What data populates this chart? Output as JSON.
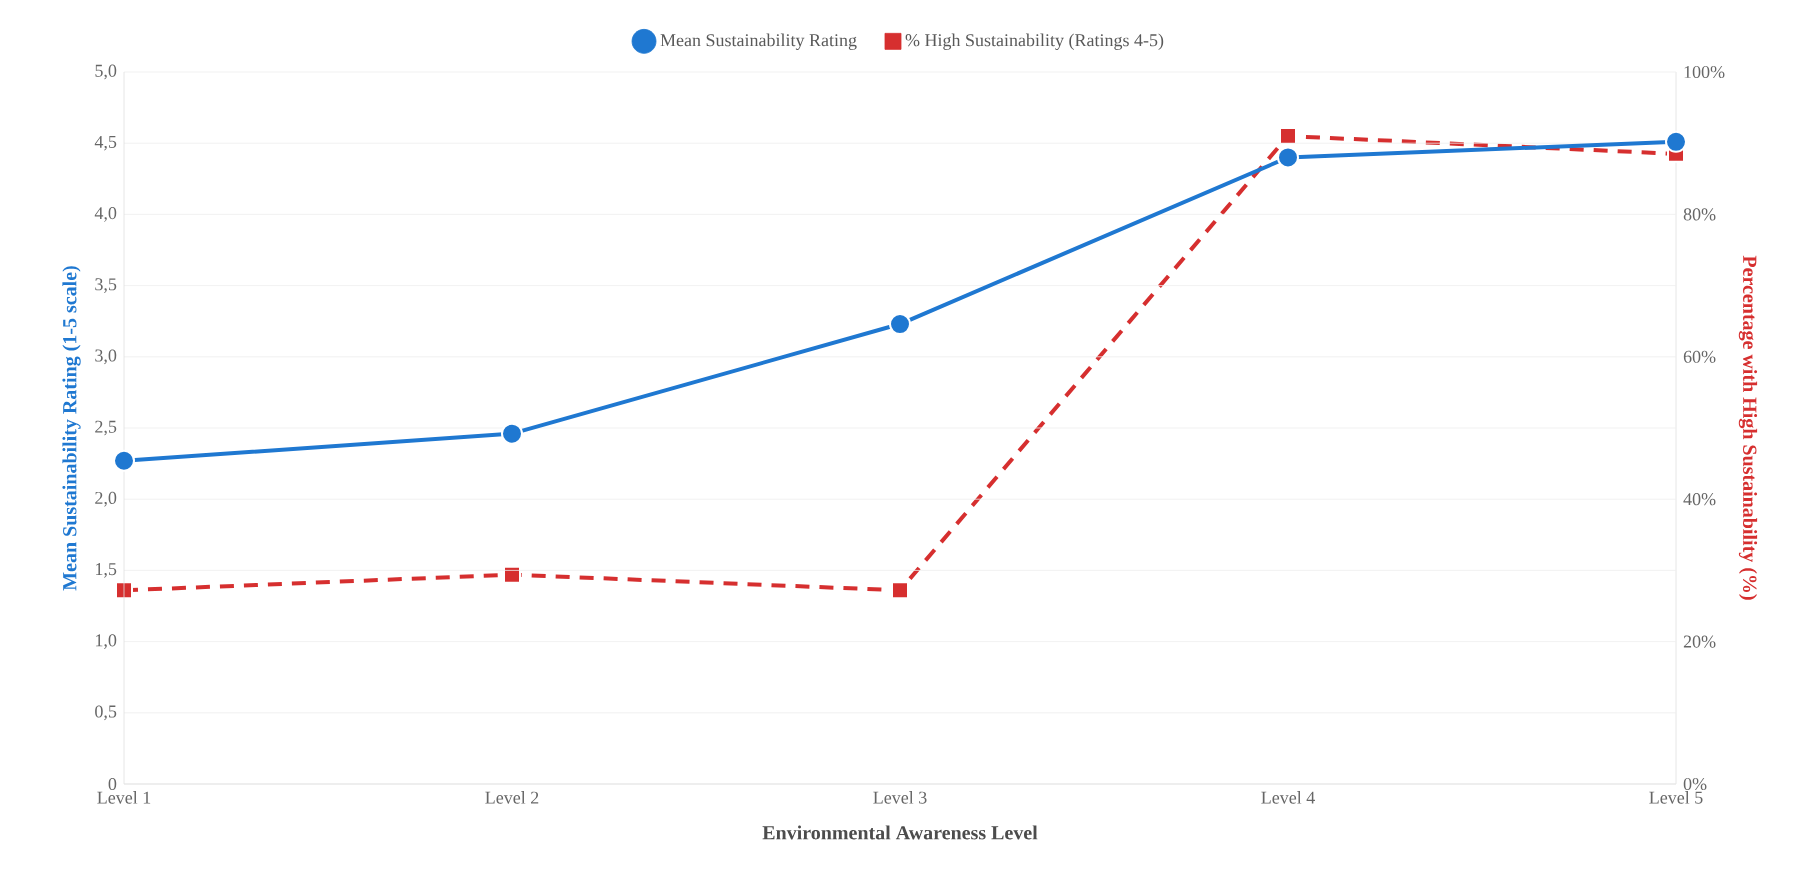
{
  "chart_data": {
    "type": "line",
    "xlabel": "Environmental Awareness Level",
    "ylabel": "Mean Sustainability Rating (1-5 scale)",
    "y2label": "Percentage with High Sustainability (%)",
    "categories": [
      "Level 1",
      "Level 2",
      "Level 3",
      "Level 4",
      "Level 5"
    ],
    "series": [
      {
        "name": "Mean Sustainability Rating",
        "color": "#1f78d1",
        "values": [
          2.27,
          2.46,
          3.23,
          4.4,
          4.51
        ],
        "marker": "circle",
        "line_style": "solid"
      },
      {
        "name": "% High Sustainability (Ratings 4-5)",
        "color": "#d62f2f",
        "values": [
          27.2,
          29.4,
          27.2,
          91,
          88.5
        ],
        "axis": "y2",
        "marker": "square",
        "line_style": "dashed"
      }
    ],
    "ylim": [
      0,
      5
    ],
    "yticks": [
      {
        "value": 0,
        "label": "0"
      },
      {
        "value": 0.5,
        "label": "0,5"
      },
      {
        "value": 1,
        "label": "1,0"
      },
      {
        "value": 1.5,
        "label": "1,5"
      },
      {
        "value": 2,
        "label": "2,0"
      },
      {
        "value": 2.5,
        "label": "2,5"
      },
      {
        "value": 3,
        "label": "3,0"
      },
      {
        "value": 3.5,
        "label": "3,5"
      },
      {
        "value": 4,
        "label": "4,0"
      },
      {
        "value": 4.5,
        "label": "4,5"
      },
      {
        "value": 5,
        "label": "5,0"
      }
    ],
    "y2lim": [
      0,
      100
    ],
    "y2ticks": [
      {
        "value": 0,
        "label": "0%"
      },
      {
        "value": 20,
        "label": "20%"
      },
      {
        "value": 40,
        "label": "40%"
      },
      {
        "value": 60,
        "label": "60%"
      },
      {
        "value": 80,
        "label": "80%"
      },
      {
        "value": 100,
        "label": "100%"
      }
    ],
    "grid": "y",
    "legend": "top"
  }
}
